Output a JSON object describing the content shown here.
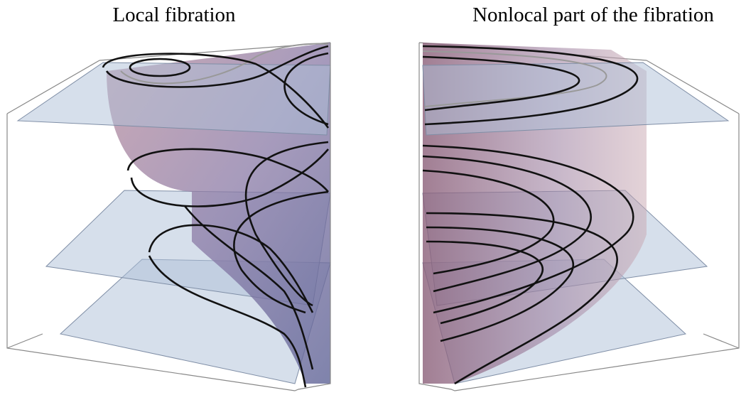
{
  "panels": [
    {
      "title": "Local fibration"
    },
    {
      "title": "Nonlocal part of the fibration"
    }
  ]
}
